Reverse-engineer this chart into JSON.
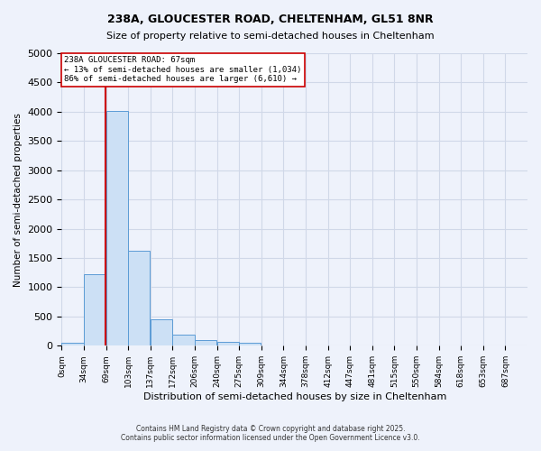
{
  "title1": "238A, GLOUCESTER ROAD, CHELTENHAM, GL51 8NR",
  "title2": "Size of property relative to semi-detached houses in Cheltenham",
  "xlabel": "Distribution of semi-detached houses by size in Cheltenham",
  "ylabel": "Number of semi-detached properties",
  "bar_values": [
    50,
    1230,
    4020,
    1630,
    460,
    185,
    100,
    60,
    50,
    0,
    0,
    0,
    0,
    0,
    0,
    0,
    0,
    0,
    0
  ],
  "bin_labels": [
    "0sqm",
    "34sqm",
    "69sqm",
    "103sqm",
    "137sqm",
    "172sqm",
    "206sqm",
    "240sqm",
    "275sqm",
    "309sqm",
    "344sqm",
    "378sqm",
    "412sqm",
    "447sqm",
    "481sqm",
    "515sqm",
    "550sqm",
    "584sqm",
    "618sqm",
    "653sqm",
    "687sqm"
  ],
  "bar_color": "#cce0f5",
  "bar_edge_color": "#5b9bd5",
  "grid_color": "#d0d8e8",
  "background_color": "#eef2fb",
  "property_line_x": 67,
  "property_line_color": "#cc0000",
  "annotation_line1": "238A GLOUCESTER ROAD: 67sqm",
  "annotation_line2": "← 13% of semi-detached houses are smaller (1,034)",
  "annotation_line3": "86% of semi-detached houses are larger (6,610) →",
  "annotation_box_color": "#ffffff",
  "annotation_box_edge": "#cc0000",
  "ylim": [
    0,
    5000
  ],
  "yticks": [
    0,
    500,
    1000,
    1500,
    2000,
    2500,
    3000,
    3500,
    4000,
    4500,
    5000
  ],
  "footer1": "Contains HM Land Registry data © Crown copyright and database right 2025.",
  "footer2": "Contains public sector information licensed under the Open Government Licence v3.0.",
  "bin_width": 34
}
